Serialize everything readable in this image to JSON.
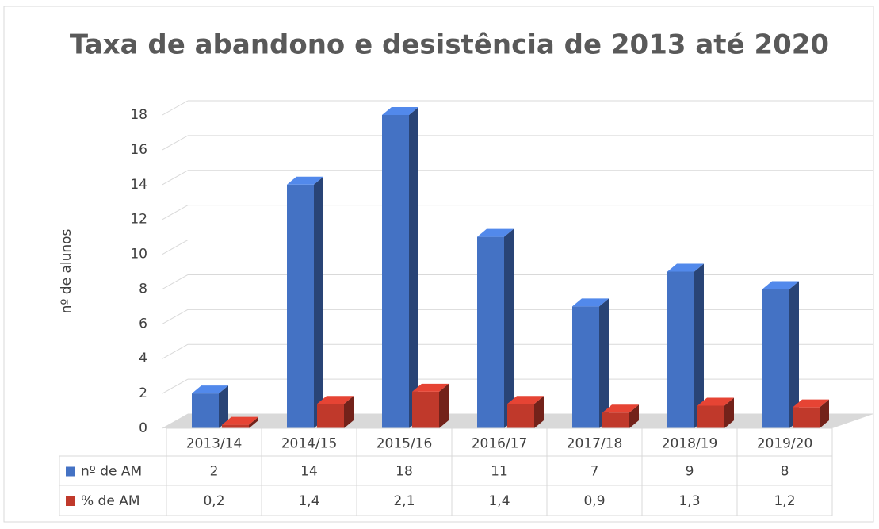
{
  "chart_data": {
    "type": "bar3d",
    "title": "Taxa de abandono e desistência de 2013 até 2020",
    "y_axis_label": "nº de alunos",
    "categories": [
      "2013/14",
      "2014/15",
      "2015/16",
      "2016/17",
      "2017/18",
      "2018/19",
      "2019/20"
    ],
    "series": [
      {
        "name": "nº de AM",
        "color": "#4472c4",
        "values": [
          2,
          14,
          18,
          11,
          7,
          9,
          8
        ]
      },
      {
        "name": "% de AM",
        "color": "#c0392b",
        "values": [
          0.2,
          1.4,
          2.1,
          1.4,
          0.9,
          1.3,
          1.2
        ],
        "value_labels": [
          "0,2",
          "1,4",
          "2,1",
          "1,4",
          "0,9",
          "1,3",
          "1,2"
        ]
      }
    ],
    "ylim": [
      0,
      18
    ],
    "yticks": [
      0,
      2,
      4,
      6,
      8,
      10,
      12,
      14,
      16,
      18
    ],
    "grid": true,
    "data_table": true
  }
}
